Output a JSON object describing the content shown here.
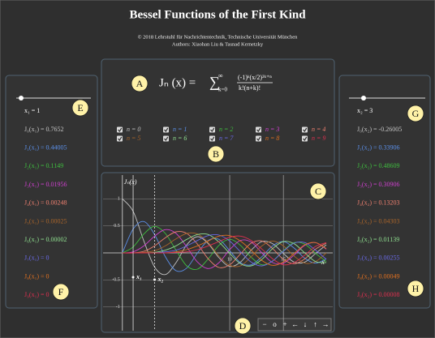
{
  "header": {
    "title": "Bessel Functions of the First Kind",
    "copyright": "© 2018 Lehrstuhl für Nachrichtentechnik, Technische Universität München",
    "authors": "Authors: Xiaohan Liu & Tasnad Kernetzky"
  },
  "formula": {
    "lhs": "Jₙ (x) =",
    "sum": "∑",
    "sum_upper": "∞",
    "sum_lower": "k=0",
    "numerator": "(-1)ᵏ(x/2)²ᵏ⁺ⁿ",
    "denominator": "k!(n+k)!"
  },
  "left_panel": {
    "x_label": "x₁ = 1",
    "x_value": 1,
    "lines": [
      "J₀(x₁) = 0.7652",
      "J₁(x₁) = 0.44005",
      "J₂(x₁) = 0.1149",
      "J₃(x₁) = 0.01956",
      "J₄(x₁) = 0.00248",
      "J₅(x₁) = 0.00025",
      "J₆(x₁) = 0.00002",
      "J₇(x₁) = 0",
      "J₈(x₁) = 0",
      "J₉(x₁) = 0"
    ]
  },
  "right_panel": {
    "x_label": "x₂ = 3",
    "x_value": 3,
    "lines": [
      "J₀(x₂) = -0.26005",
      "J₁(x₂) = 0.33906",
      "J₂(x₂) = 0.48609",
      "J₃(x₂) = 0.30906",
      "J₄(x₂) = 0.13203",
      "J₅(x₂) = 0.04303",
      "J₆(x₂) = 0.01139",
      "J₇(x₂) = 0.00255",
      "J₈(x₂) = 0.00049",
      "J₉(x₂) = 0.00008"
    ]
  },
  "chart_data": {
    "type": "line",
    "y_label": "Jₙ(x)",
    "x_label": "x",
    "xlim": [
      -1.8,
      19.6
    ],
    "ylim": [
      -1.44,
      1.44
    ],
    "xticks": [
      10,
      15
    ],
    "yticks": [
      -1,
      -0.5,
      0.5,
      1
    ],
    "grid": true,
    "x": [
      0,
      1,
      2,
      3,
      4,
      5,
      6,
      7,
      8,
      9,
      10,
      11,
      12,
      13,
      14,
      15,
      16,
      17,
      18,
      19
    ],
    "series": [
      {
        "name": "n = 0",
        "color": "#c4c4c4",
        "values": [
          1,
          0.77,
          0.22,
          -0.26,
          -0.4,
          -0.18,
          0.15,
          0.3,
          0.17,
          -0.09,
          -0.25,
          -0.17,
          0.05,
          0.21,
          0.17,
          -0.01,
          -0.17,
          -0.17,
          -0.01,
          0.15
        ]
      },
      {
        "name": "n = 1",
        "color": "#5b8fe8",
        "values": [
          0,
          0.44,
          0.58,
          0.34,
          -0.07,
          -0.33,
          -0.28,
          0,
          0.23,
          0.25,
          0.04,
          -0.18,
          -0.22,
          -0.07,
          0.13,
          0.21,
          0.09,
          -0.1,
          -0.19,
          -0.11
        ]
      },
      {
        "name": "n = 2",
        "color": "#3fbf3f",
        "values": [
          0,
          0.11,
          0.35,
          0.49,
          0.36,
          0.05,
          -0.24,
          -0.3,
          -0.11,
          0.14,
          0.25,
          0.14,
          -0.08,
          -0.22,
          -0.15,
          0.04,
          0.19,
          0.16,
          -0.01,
          -0.16
        ]
      },
      {
        "name": "n = 3",
        "color": "#d040d0",
        "values": [
          0,
          0.02,
          0.13,
          0.31,
          0.43,
          0.36,
          0.11,
          -0.17,
          -0.29,
          -0.18,
          0.06,
          0.23,
          0.2,
          0,
          -0.18,
          -0.19,
          -0.04,
          0.14,
          0.19,
          0.07
        ]
      },
      {
        "name": "n = 4",
        "color": "#f08070",
        "values": [
          0,
          0,
          0.03,
          0.13,
          0.28,
          0.39,
          0.36,
          0.16,
          -0.11,
          -0.27,
          -0.22,
          -0.02,
          0.18,
          0.22,
          0.08,
          -0.12,
          -0.2,
          -0.11,
          0.07,
          0.18
        ]
      },
      {
        "name": "n = 5",
        "color": "#a8642a",
        "values": [
          0,
          0,
          0.01,
          0.04,
          0.13,
          0.26,
          0.36,
          0.35,
          0.19,
          -0.06,
          -0.23,
          -0.24,
          -0.07,
          0.13,
          0.22,
          0.13,
          -0.06,
          -0.19,
          -0.16,
          0
        ]
      },
      {
        "name": "n = 6",
        "color": "#90e090",
        "values": [
          0,
          0,
          0,
          0.01,
          0.05,
          0.13,
          0.25,
          0.34,
          0.34,
          0.2,
          -0.01,
          -0.2,
          -0.24,
          -0.12,
          0.08,
          0.21,
          0.17,
          0,
          -0.16,
          -0.18
        ]
      },
      {
        "name": "n = 7",
        "color": "#6a6ae8",
        "values": [
          0,
          0,
          0,
          0,
          0.02,
          0.05,
          0.13,
          0.23,
          0.32,
          0.33,
          0.22,
          0.02,
          -0.17,
          -0.24,
          -0.15,
          0.03,
          0.18,
          0.19,
          0.05,
          -0.12
        ]
      },
      {
        "name": "n = 8",
        "color": "#e07020",
        "values": [
          0,
          0,
          0,
          0,
          0,
          0.02,
          0.06,
          0.13,
          0.22,
          0.31,
          0.32,
          0.22,
          0.05,
          -0.14,
          -0.23,
          -0.17,
          -0.01,
          0.15,
          0.19,
          0.08
        ]
      },
      {
        "name": "n = 9",
        "color": "#e03050",
        "values": [
          0,
          0,
          0,
          0,
          0,
          0.01,
          0.02,
          0.06,
          0.13,
          0.21,
          0.29,
          0.31,
          0.23,
          0.07,
          -0.11,
          -0.22,
          -0.18,
          -0.04,
          0.12,
          0.19
        ]
      }
    ],
    "markers": [
      "x₁",
      "x₂"
    ]
  },
  "toolbar": [
    "−",
    "o",
    "+",
    "←",
    "↓",
    "↑",
    "→"
  ],
  "annotations": [
    "A",
    "B",
    "C",
    "D",
    "E",
    "F",
    "G",
    "H"
  ]
}
